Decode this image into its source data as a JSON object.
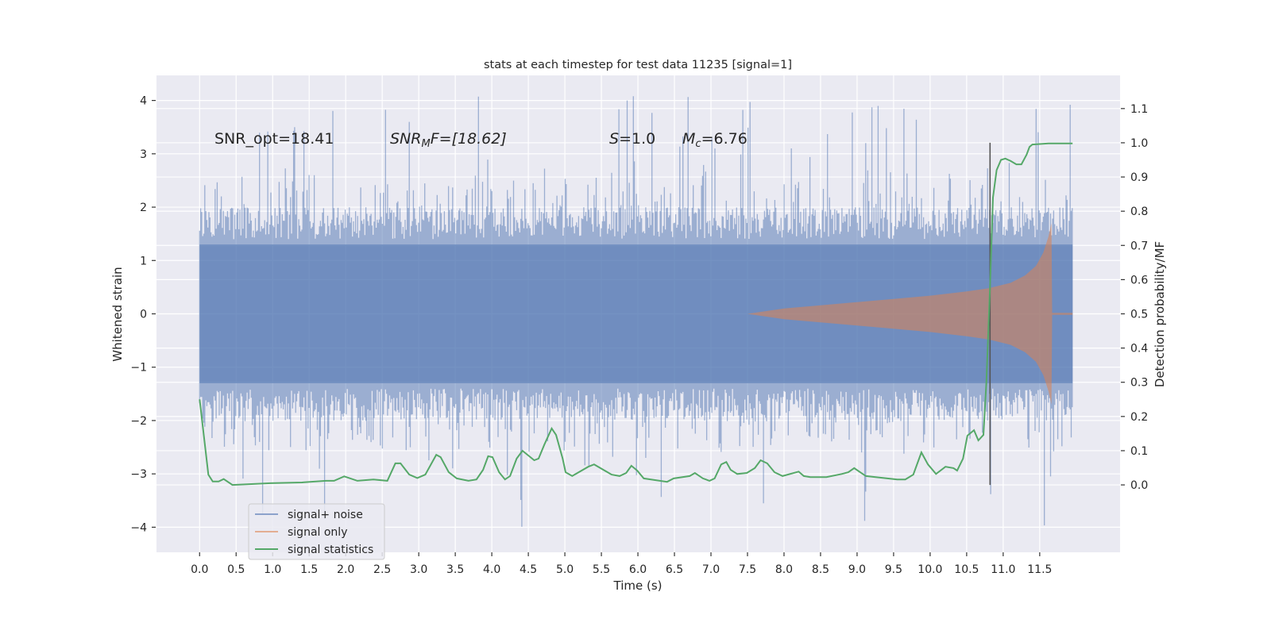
{
  "chart_data": {
    "type": "line",
    "title": "stats at each timestep for test data 11235 [signal=1]",
    "xlabel": "Time (s)",
    "ylabel": "Whitened strain",
    "ylabel_right": "Detection probability/MF",
    "xlim": [
      -0.59,
      12.6
    ],
    "ylim": [
      -4.47,
      4.47
    ],
    "ylim_right": [
      -0.197,
      1.197
    ],
    "grid": true,
    "x_ticks": [
      "0.0",
      "0.5",
      "1.0",
      "1.5",
      "2.0",
      "2.5",
      "3.0",
      "3.5",
      "4.0",
      "4.5",
      "5.0",
      "5.5",
      "6.0",
      "6.5",
      "7.0",
      "7.5",
      "8.0",
      "8.5",
      "9.0",
      "9.5",
      "10.0",
      "10.5",
      "11.0",
      "11.5"
    ],
    "y_ticks": [
      "4",
      "3",
      "2",
      "1",
      "0",
      "−1",
      "−2",
      "−3",
      "−4"
    ],
    "y_ticks_right": [
      "1.1",
      "1.0",
      "0.9",
      "0.8",
      "0.7",
      "0.6",
      "0.5",
      "0.4",
      "0.3",
      "0.2",
      "0.1",
      "0.0"
    ],
    "annotations": {
      "snr_opt": "SNR_opt=18.41",
      "snr_mf_main": "SNR",
      "snr_mf_sub": "M",
      "snr_mf_rest": "F=[18.62]",
      "s_main": "S",
      "s_rest": "=1.0",
      "mc_main": "M",
      "mc_sub": "c",
      "mc_rest": "=6.76"
    },
    "legend": {
      "placement": "lower-left",
      "entries": [
        "signal+ noise",
        "signal only",
        "signal statistics"
      ]
    },
    "colors": {
      "noise": "#4c72b0",
      "signal": "#dd8452",
      "stats": "#55a868",
      "vline": "#555555",
      "bg": "#eaeaf2"
    },
    "vertical_line_t": 10.82,
    "noise": {
      "t_start": 0.0,
      "t_end": 11.95,
      "min": -4.0,
      "max": 4.1,
      "band": 1.3
    },
    "signal_envelope": {
      "t": [
        0,
        7.5,
        8.0,
        8.5,
        9.0,
        9.5,
        10.0,
        10.5,
        10.8,
        11.1,
        11.3,
        11.45,
        11.55,
        11.62,
        11.66,
        11.67,
        11.95
      ],
      "amp": [
        0,
        0.0,
        0.1,
        0.16,
        0.22,
        0.28,
        0.34,
        0.42,
        0.48,
        0.58,
        0.72,
        0.9,
        1.15,
        1.45,
        1.7,
        0.02,
        0.02
      ]
    },
    "series": [
      {
        "name": "signal statistics",
        "axis": "right",
        "x": [
          0.0,
          0.12,
          0.18,
          0.26,
          0.33,
          0.45,
          0.97,
          1.4,
          1.73,
          1.84,
          1.98,
          2.16,
          2.38,
          2.57,
          2.68,
          2.75,
          2.87,
          2.98,
          3.09,
          3.24,
          3.3,
          3.41,
          3.52,
          3.68,
          3.79,
          3.88,
          3.95,
          4.01,
          4.1,
          4.18,
          4.25,
          4.34,
          4.42,
          4.58,
          4.64,
          4.72,
          4.82,
          4.88,
          4.97,
          5.01,
          5.1,
          5.32,
          5.4,
          5.64,
          5.75,
          5.84,
          5.91,
          5.99,
          6.08,
          6.4,
          6.49,
          6.71,
          6.78,
          6.89,
          6.98,
          7.05,
          7.14,
          7.21,
          7.27,
          7.36,
          7.49,
          7.6,
          7.68,
          7.77,
          7.87,
          7.98,
          8.2,
          8.27,
          8.36,
          8.58,
          8.79,
          8.88,
          8.96,
          9.03,
          9.12,
          9.55,
          9.66,
          9.77,
          9.88,
          9.97,
          10.08,
          10.21,
          10.32,
          10.37,
          10.45,
          10.51,
          10.6,
          10.66,
          10.73,
          10.77,
          10.82,
          10.86,
          10.91,
          10.97,
          11.03,
          11.1,
          11.18,
          11.25,
          11.32,
          11.36,
          11.4,
          11.62,
          11.95
        ],
        "y": [
          0.25,
          0.03,
          0.01,
          0.01,
          0.017,
          0.0,
          0.005,
          0.007,
          0.012,
          0.012,
          0.025,
          0.012,
          0.016,
          0.012,
          0.063,
          0.063,
          0.03,
          0.02,
          0.03,
          0.088,
          0.081,
          0.037,
          0.019,
          0.012,
          0.016,
          0.044,
          0.084,
          0.081,
          0.037,
          0.016,
          0.026,
          0.077,
          0.1,
          0.072,
          0.077,
          0.118,
          0.165,
          0.146,
          0.077,
          0.037,
          0.026,
          0.053,
          0.06,
          0.03,
          0.026,
          0.035,
          0.056,
          0.042,
          0.019,
          0.009,
          0.019,
          0.026,
          0.035,
          0.019,
          0.012,
          0.019,
          0.06,
          0.067,
          0.044,
          0.032,
          0.035,
          0.049,
          0.072,
          0.063,
          0.037,
          0.026,
          0.039,
          0.026,
          0.023,
          0.023,
          0.032,
          0.037,
          0.049,
          0.039,
          0.026,
          0.016,
          0.016,
          0.03,
          0.095,
          0.06,
          0.032,
          0.053,
          0.049,
          0.042,
          0.077,
          0.144,
          0.16,
          0.13,
          0.146,
          0.3,
          0.58,
          0.84,
          0.92,
          0.95,
          0.954,
          0.947,
          0.937,
          0.937,
          0.965,
          0.988,
          0.995,
          0.998,
          0.998
        ]
      }
    ]
  }
}
